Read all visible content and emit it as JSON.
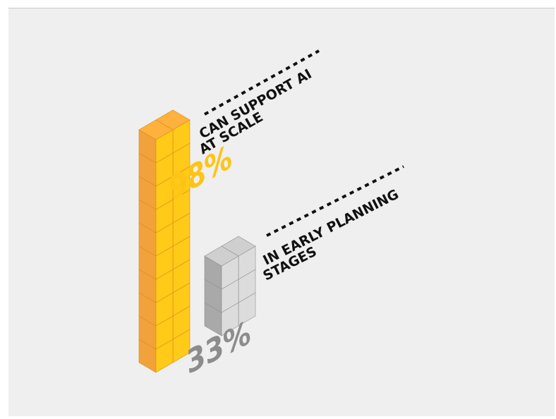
{
  "colors": {
    "background": "#efefef",
    "frame_line": "#c9c9c9",
    "text_dark": "#111111",
    "highlight": {
      "top": "#ffb13d",
      "left": "#f2a23a",
      "right": "#ffca18",
      "edge": "#d98a1a",
      "label": "#ffc414"
    },
    "neutral": {
      "top": "#cfcfcf",
      "left": "#a9a9a9",
      "right": "#dcdcdc",
      "edge": "#8f8f8f",
      "label": "#8c8c8c"
    }
  },
  "chart_data": {
    "type": "bar",
    "style": "isometric stacked cubes",
    "categories": [
      "CAN SUPPORT AI AT SCALE",
      "IN EARLY PLANNING STAGES"
    ],
    "values": [
      98,
      33
    ],
    "unit": "%",
    "series": [
      {
        "percent_label": "98%",
        "value": 98,
        "cube_rows": 10,
        "color_key": "highlight",
        "caption_lines": [
          "CAN SUPPORT AI",
          "AT SCALE"
        ]
      },
      {
        "percent_label": "33%",
        "value": 33,
        "cube_rows": 3,
        "color_key": "neutral",
        "caption_lines": [
          "IN EARLY PLANNING",
          "STAGES"
        ]
      }
    ],
    "title": "",
    "xlabel": "",
    "ylabel": "",
    "ylim": [
      0,
      100
    ],
    "grid": false,
    "legend": "none"
  }
}
